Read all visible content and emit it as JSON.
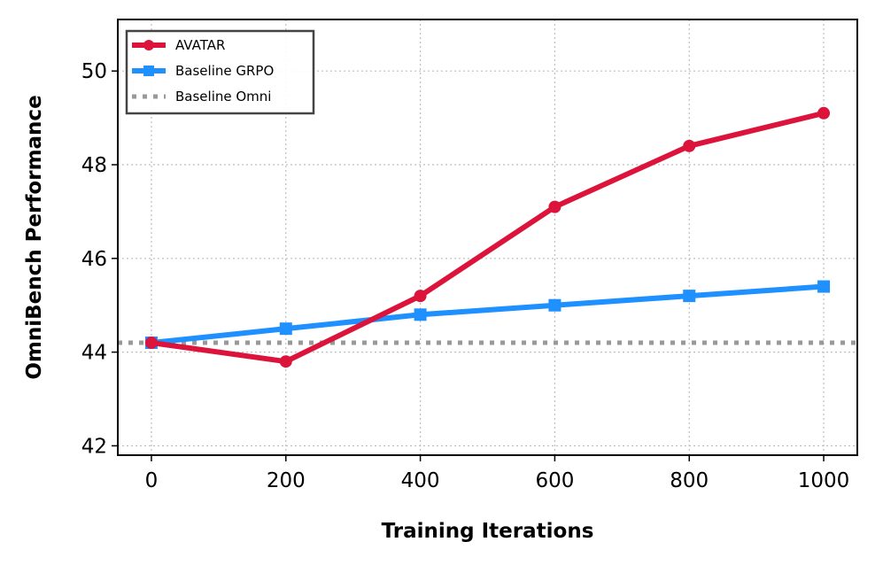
{
  "chart_data": {
    "type": "line",
    "title": "",
    "xlabel": "Training Iterations",
    "ylabel": "OmniBench Performance",
    "x": [
      0,
      200,
      400,
      600,
      800,
      1000
    ],
    "xlim": [
      -50,
      1050
    ],
    "ylim": [
      41.8,
      51.1
    ],
    "xticks": [
      0,
      200,
      400,
      600,
      800,
      1000
    ],
    "yticks": [
      42,
      44,
      46,
      48,
      50
    ],
    "grid": true,
    "legend_position": "top-left",
    "series": [
      {
        "name": "AVATAR",
        "values": [
          44.2,
          43.8,
          45.2,
          47.1,
          48.4,
          49.1
        ],
        "color": "#dc143c",
        "marker": "circle",
        "style": "solid"
      },
      {
        "name": "Baseline GRPO",
        "values": [
          44.2,
          44.5,
          44.8,
          45.0,
          45.2,
          45.4
        ],
        "color": "#1e90ff",
        "marker": "square",
        "style": "solid"
      },
      {
        "name": "Baseline Omni",
        "constant": 44.2,
        "color": "#999999",
        "marker": "none",
        "style": "dotted"
      }
    ]
  }
}
